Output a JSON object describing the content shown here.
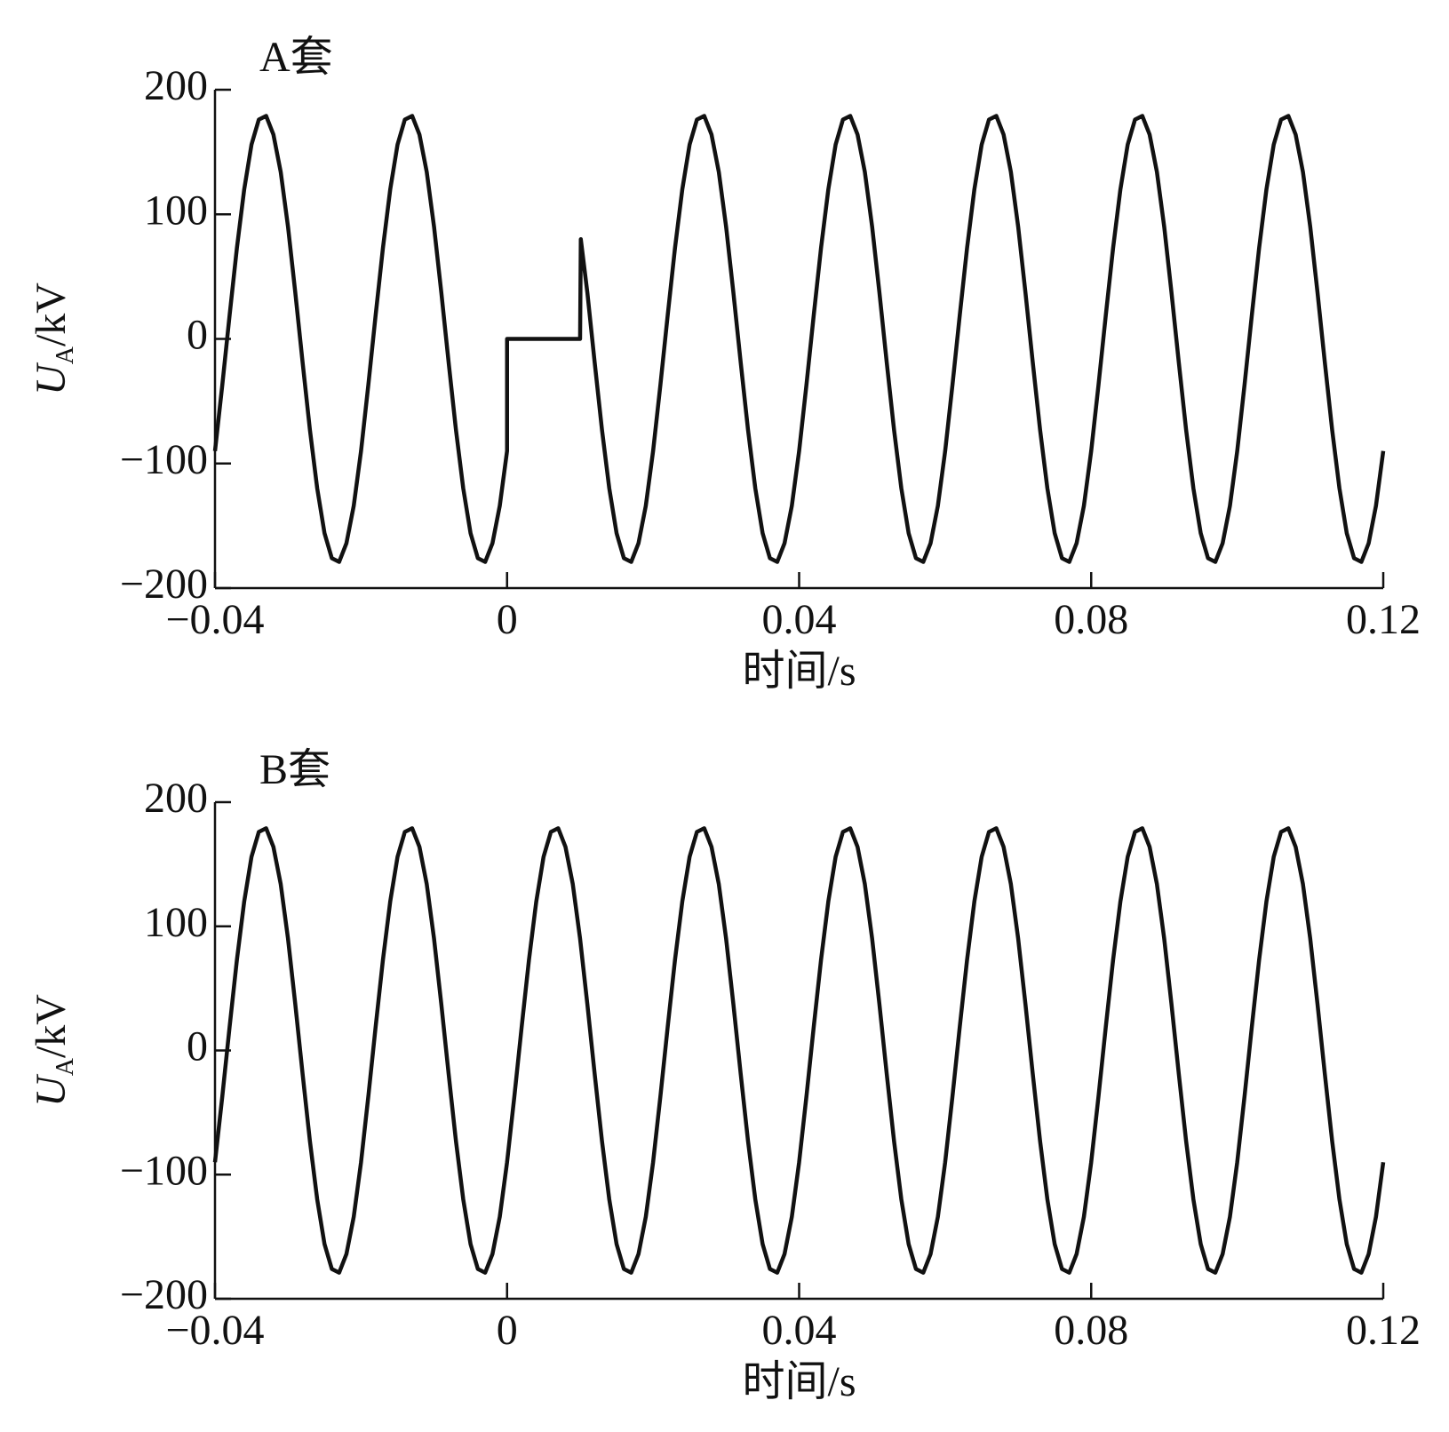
{
  "chart_data": [
    {
      "type": "line",
      "title": "A套",
      "x_label": "时间/s",
      "y_label": [
        "U",
        "A",
        "/kV"
      ],
      "xlim": [
        -0.04,
        0.12
      ],
      "xticks": [
        {
          "value": -0.04,
          "label": "−0.04"
        },
        0,
        0.04,
        0.08,
        0.12
      ],
      "ylim": [
        -200,
        200
      ],
      "yticks": [
        {
          "value": -200,
          "label": "−200"
        },
        {
          "value": -100,
          "label": "−100"
        },
        0,
        100,
        200
      ],
      "series": [
        {
          "color": "#111111",
          "x": [
            -0.04,
            -0.039,
            -0.038,
            -0.037,
            -0.036,
            -0.035,
            -0.034,
            -0.033,
            -0.032,
            -0.031,
            -0.03,
            -0.029,
            -0.028,
            -0.027,
            -0.026,
            -0.025,
            -0.024,
            -0.023,
            -0.022,
            -0.021,
            -0.02,
            -0.019,
            -0.018,
            -0.017,
            -0.016,
            -0.015,
            -0.014,
            -0.013,
            -0.012,
            -0.011,
            -0.01,
            -0.009,
            -0.008,
            -0.007,
            -0.006,
            -0.005,
            -0.004,
            -0.003,
            -0.002,
            -0.001,
            0,
            0,
            0.001,
            0.002,
            0.003,
            0.004,
            0.005,
            0.006,
            0.007,
            0.008,
            0.009,
            0.01,
            0.0101,
            0.011,
            0.012,
            0.013,
            0.014,
            0.015,
            0.016,
            0.017,
            0.018,
            0.019,
            0.02,
            0.021,
            0.022,
            0.023,
            0.024,
            0.025,
            0.026,
            0.027,
            0.028,
            0.029,
            0.03,
            0.031,
            0.032,
            0.033,
            0.034,
            0.035,
            0.036,
            0.037,
            0.038,
            0.039,
            0.04,
            0.041,
            0.042,
            0.043,
            0.044,
            0.045,
            0.046,
            0.047,
            0.048,
            0.049,
            0.05,
            0.051,
            0.052,
            0.053,
            0.054,
            0.055,
            0.056,
            0.057,
            0.058,
            0.059,
            0.06,
            0.061,
            0.062,
            0.063,
            0.064,
            0.065,
            0.066,
            0.067,
            0.068,
            0.069,
            0.07,
            0.071,
            0.072,
            0.073,
            0.074,
            0.075,
            0.076,
            0.077,
            0.078,
            0.079,
            0.08,
            0.081,
            0.082,
            0.083,
            0.084,
            0.085,
            0.086,
            0.087,
            0.088,
            0.089,
            0.09,
            0.091,
            0.092,
            0.093,
            0.094,
            0.095,
            0.096,
            0.097,
            0.098,
            0.099,
            0.1,
            0.101,
            0.102,
            0.103,
            0.104,
            0.105,
            0.106,
            0.107,
            0.108,
            0.109,
            0.11,
            0.111,
            0.112,
            0.113,
            0.114,
            0.115,
            0.116,
            0.117,
            0.118,
            0.119,
            0.12
          ],
          "values": [
            -90,
            -37,
            19,
            73,
            120,
            156,
            176,
            179,
            164,
            134,
            90,
            37,
            -19,
            -73,
            -120,
            -156,
            -176,
            -179,
            -164,
            -134,
            -90,
            -37,
            19,
            73,
            120,
            156,
            176,
            179,
            164,
            134,
            90,
            37,
            -19,
            -73,
            -120,
            -156,
            -176,
            -179,
            -164,
            -134,
            -90,
            0,
            0,
            0,
            0,
            0,
            0,
            0,
            0,
            0,
            0,
            0,
            80,
            37,
            -19,
            -73,
            -120,
            -156,
            -176,
            -179,
            -164,
            -134,
            -90,
            -37,
            19,
            73,
            120,
            156,
            176,
            179,
            164,
            134,
            90,
            37,
            -19,
            -73,
            -120,
            -156,
            -176,
            -179,
            -164,
            -134,
            -90,
            -37,
            19,
            73,
            120,
            156,
            176,
            179,
            164,
            134,
            90,
            37,
            -19,
            -73,
            -120,
            -156,
            -176,
            -179,
            -164,
            -134,
            -90,
            -37,
            19,
            73,
            120,
            156,
            176,
            179,
            164,
            134,
            90,
            37,
            -19,
            -73,
            -120,
            -156,
            -176,
            -179,
            -164,
            -134,
            -90,
            -37,
            19,
            73,
            120,
            156,
            176,
            179,
            164,
            134,
            90,
            37,
            -19,
            -73,
            -120,
            -156,
            -176,
            -179,
            -164,
            -134,
            -90,
            -37,
            19,
            73,
            120,
            156,
            176,
            179,
            164,
            134,
            90,
            37,
            -19,
            -73,
            -120,
            -156,
            -176,
            -179,
            -164,
            -134,
            -90
          ]
        }
      ]
    },
    {
      "type": "line",
      "title": "B套",
      "x_label": "时间/s",
      "y_label": [
        "U",
        "A",
        "/kV"
      ],
      "xlim": [
        -0.04,
        0.12
      ],
      "xticks": [
        {
          "value": -0.04,
          "label": "−0.04"
        },
        0,
        0.04,
        0.08,
        0.12
      ],
      "ylim": [
        -200,
        200
      ],
      "yticks": [
        {
          "value": -200,
          "label": "−200"
        },
        {
          "value": -100,
          "label": "−100"
        },
        0,
        100,
        200
      ],
      "series": [
        {
          "color": "#111111",
          "x": [
            -0.04,
            -0.039,
            -0.038,
            -0.037,
            -0.036,
            -0.035,
            -0.034,
            -0.033,
            -0.032,
            -0.031,
            -0.03,
            -0.029,
            -0.028,
            -0.027,
            -0.026,
            -0.025,
            -0.024,
            -0.023,
            -0.022,
            -0.021,
            -0.02,
            -0.019,
            -0.018,
            -0.017,
            -0.016,
            -0.015,
            -0.014,
            -0.013,
            -0.012,
            -0.011,
            -0.01,
            -0.009,
            -0.008,
            -0.007,
            -0.006,
            -0.005,
            -0.004,
            -0.003,
            -0.002,
            -0.001,
            0,
            0.001,
            0.002,
            0.003,
            0.004,
            0.005,
            0.006,
            0.007,
            0.008,
            0.009,
            0.01,
            0.011,
            0.012,
            0.013,
            0.014,
            0.015,
            0.016,
            0.017,
            0.018,
            0.019,
            0.02,
            0.021,
            0.022,
            0.023,
            0.024,
            0.025,
            0.026,
            0.027,
            0.028,
            0.029,
            0.03,
            0.031,
            0.032,
            0.033,
            0.034,
            0.035,
            0.036,
            0.037,
            0.038,
            0.039,
            0.04,
            0.041,
            0.042,
            0.043,
            0.044,
            0.045,
            0.046,
            0.047,
            0.048,
            0.049,
            0.05,
            0.051,
            0.052,
            0.053,
            0.054,
            0.055,
            0.056,
            0.057,
            0.058,
            0.059,
            0.06,
            0.061,
            0.062,
            0.063,
            0.064,
            0.065,
            0.066,
            0.067,
            0.068,
            0.069,
            0.07,
            0.071,
            0.072,
            0.073,
            0.074,
            0.075,
            0.076,
            0.077,
            0.078,
            0.079,
            0.08,
            0.081,
            0.082,
            0.083,
            0.084,
            0.085,
            0.086,
            0.087,
            0.088,
            0.089,
            0.09,
            0.091,
            0.092,
            0.093,
            0.094,
            0.095,
            0.096,
            0.097,
            0.098,
            0.099,
            0.1,
            0.101,
            0.102,
            0.103,
            0.104,
            0.105,
            0.106,
            0.107,
            0.108,
            0.109,
            0.11,
            0.111,
            0.112,
            0.113,
            0.114,
            0.115,
            0.116,
            0.117,
            0.118,
            0.119,
            0.12
          ],
          "values": [
            -90,
            -37,
            19,
            73,
            120,
            156,
            176,
            179,
            164,
            134,
            90,
            37,
            -19,
            -73,
            -120,
            -156,
            -176,
            -179,
            -164,
            -134,
            -90,
            -37,
            19,
            73,
            120,
            156,
            176,
            179,
            164,
            134,
            90,
            37,
            -19,
            -73,
            -120,
            -156,
            -176,
            -179,
            -164,
            -134,
            -90,
            -37,
            19,
            73,
            120,
            156,
            176,
            179,
            164,
            134,
            90,
            37,
            -19,
            -73,
            -120,
            -156,
            -176,
            -179,
            -164,
            -134,
            -90,
            -37,
            19,
            73,
            120,
            156,
            176,
            179,
            164,
            134,
            90,
            37,
            -19,
            -73,
            -120,
            -156,
            -176,
            -179,
            -164,
            -134,
            -90,
            -37,
            19,
            73,
            120,
            156,
            176,
            179,
            164,
            134,
            90,
            37,
            -19,
            -73,
            -120,
            -156,
            -176,
            -179,
            -164,
            -134,
            -90,
            -37,
            19,
            73,
            120,
            156,
            176,
            179,
            164,
            134,
            90,
            37,
            -19,
            -73,
            -120,
            -156,
            -176,
            -179,
            -164,
            -134,
            -90,
            -37,
            19,
            73,
            120,
            156,
            176,
            179,
            164,
            134,
            90,
            37,
            -19,
            -73,
            -120,
            -156,
            -176,
            -179,
            -164,
            -134,
            -90,
            -37,
            19,
            73,
            120,
            156,
            176,
            179,
            164,
            134,
            90,
            37,
            -19,
            -73,
            -120,
            -156,
            -176,
            -179,
            -164,
            -134,
            -90
          ]
        }
      ]
    }
  ]
}
